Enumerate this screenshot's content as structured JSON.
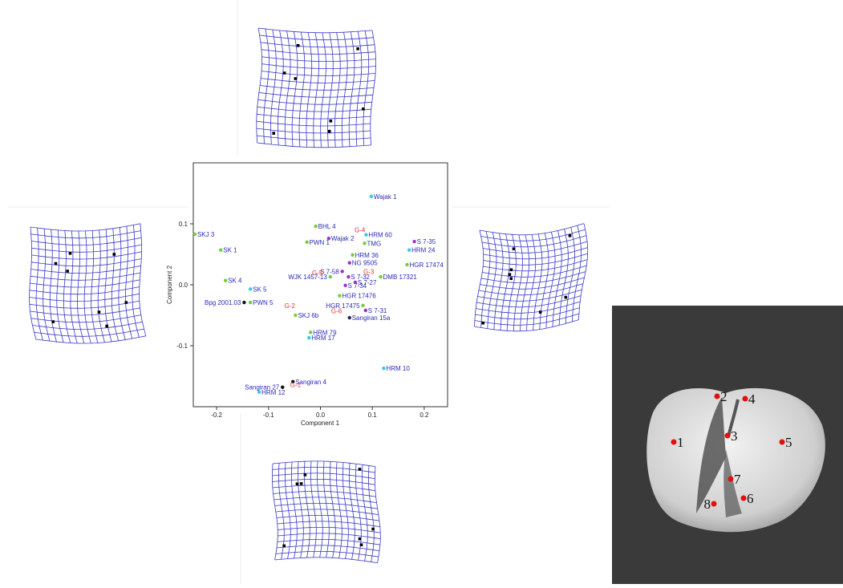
{
  "chart_data": {
    "type": "scatter",
    "x_label": "Component 1",
    "y_label": "Component 2",
    "xlim": [
      -0.245,
      0.245
    ],
    "ylim": [
      -0.2,
      0.2
    ],
    "xticks": [
      -0.2,
      -0.1,
      {
        "value": 0,
        "label": "0.0"
      },
      0.1,
      0.2
    ],
    "yticks": [
      -0.1,
      {
        "value": 0,
        "label": "0.0"
      },
      0.1
    ],
    "label_color": "#2a2ab8",
    "annotation_color": "#e03030",
    "points": [
      {
        "label": "Wajak 1",
        "x": 0.098,
        "y": 0.145,
        "color": "#33ccdd"
      },
      {
        "label": "BHL 4",
        "x": -0.009,
        "y": 0.096,
        "color": "#77cc33"
      },
      {
        "label": "SKJ 3",
        "x": -0.242,
        "y": 0.083,
        "color": "#77cc33"
      },
      {
        "label": "SK 1",
        "x": -0.192,
        "y": 0.057,
        "color": "#77cc33"
      },
      {
        "label": "PWN 1",
        "x": -0.026,
        "y": 0.07,
        "color": "#77cc33"
      },
      {
        "label": "Wajak 2",
        "x": 0.016,
        "y": 0.076,
        "color": "#9933cc"
      },
      {
        "label": "HRM 60",
        "x": 0.088,
        "y": 0.082,
        "color": "#33ccdd"
      },
      {
        "label": "TMG",
        "x": 0.085,
        "y": 0.068,
        "color": "#77cc33"
      },
      {
        "label": "S 7-35",
        "x": 0.181,
        "y": 0.071,
        "color": "#9933cc"
      },
      {
        "label": "HRM 24",
        "x": 0.171,
        "y": 0.057,
        "color": "#33ccdd"
      },
      {
        "label": "HRM 36",
        "x": 0.062,
        "y": 0.049,
        "color": "#77cc33"
      },
      {
        "label": "HGR 17474",
        "x": 0.167,
        "y": 0.033,
        "color": "#77cc33"
      },
      {
        "label": "NG 9505",
        "x": 0.056,
        "y": 0.036,
        "color": "#9933cc"
      },
      {
        "label": "S 7-58",
        "x": 0.042,
        "y": 0.022,
        "color": "#9933cc"
      },
      {
        "label": "DMB 17321",
        "x": 0.116,
        "y": 0.013,
        "color": "#77cc33"
      },
      {
        "label": "S 7-27",
        "x": 0.067,
        "y": 0.004,
        "color": "#9933cc"
      },
      {
        "label": "S 7-34",
        "x": 0.048,
        "y": -0.001,
        "color": "#9933cc"
      },
      {
        "label": "WJK 1457-13",
        "x": 0.019,
        "y": 0.013,
        "color": "#77cc33"
      },
      {
        "label": "S 7-32",
        "x": 0.054,
        "y": 0.013,
        "color": "#9933cc"
      },
      {
        "label": "SK 4",
        "x": -0.183,
        "y": 0.007,
        "color": "#77cc33"
      },
      {
        "label": "SK 5",
        "x": -0.135,
        "y": -0.007,
        "color": "#33ccdd"
      },
      {
        "label": "Bpg 2001.03",
        "x": -0.147,
        "y": -0.029,
        "color": "#111111"
      },
      {
        "label": "PWN 5",
        "x": -0.135,
        "y": -0.029,
        "color": "#77cc33"
      },
      {
        "label": "HGR 17476",
        "x": 0.037,
        "y": -0.018,
        "color": "#77cc33"
      },
      {
        "label": "HGR 17475",
        "x": 0.082,
        "y": -0.034,
        "color": "#77cc33"
      },
      {
        "label": "SKJ 6b",
        "x": -0.048,
        "y": -0.05,
        "color": "#77cc33"
      },
      {
        "label": "S 7-31",
        "x": 0.087,
        "y": -0.042,
        "color": "#9933cc"
      },
      {
        "label": "Sangiran 15a",
        "x": 0.056,
        "y": -0.054,
        "color": "#222266"
      },
      {
        "label": "HRM 79",
        "x": -0.019,
        "y": -0.078,
        "color": "#77cc33"
      },
      {
        "label": "HRM 17",
        "x": -0.022,
        "y": -0.087,
        "color": "#33ccdd"
      },
      {
        "label": "HRM 10",
        "x": 0.122,
        "y": -0.137,
        "color": "#33ccdd"
      },
      {
        "label": "Sangiran 4",
        "x": -0.053,
        "y": -0.159,
        "color": "#111111"
      },
      {
        "label": "Sangiran 27",
        "x": -0.073,
        "y": -0.168,
        "color": "#111111"
      },
      {
        "label": "HRM 12",
        "x": -0.118,
        "y": -0.176,
        "color": "#33ccdd"
      }
    ],
    "annotations": [
      {
        "text": "G-4",
        "x": 0.076,
        "y": 0.086
      },
      {
        "text": "G-3",
        "x": 0.093,
        "y": 0.018
      },
      {
        "text": "G-5",
        "x": -0.006,
        "y": 0.016
      },
      {
        "text": "G-2",
        "x": -0.059,
        "y": -0.038
      },
      {
        "text": "G-6",
        "x": 0.031,
        "y": -0.047
      },
      {
        "text": "G-1",
        "x": -0.048,
        "y": -0.168
      }
    ]
  },
  "photo_landmarks": [
    "1",
    "2",
    "3",
    "4",
    "5",
    "6",
    "7",
    "8"
  ]
}
